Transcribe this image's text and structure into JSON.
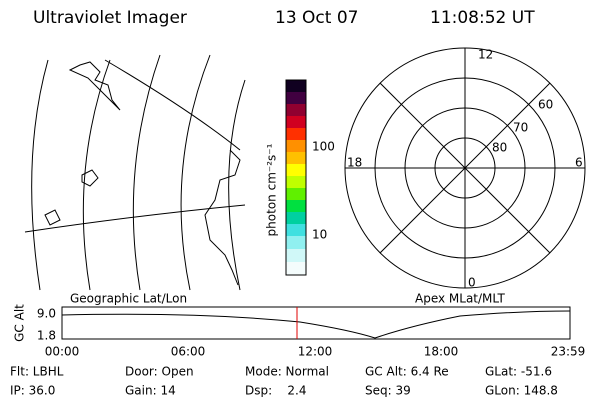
{
  "header": {
    "title": "Ultraviolet Imager",
    "date": "13 Oct 07",
    "time": "11:08:52 UT"
  },
  "map": {
    "caption": "Geographic Lat/Lon"
  },
  "colorbar": {
    "label": "photon cm⁻²s⁻¹",
    "ticks": [
      "100",
      "10"
    ]
  },
  "polar": {
    "caption": "Apex MLat/MLT",
    "mlt_labels": [
      "12",
      "18",
      "6",
      "0"
    ],
    "mlat_labels": [
      "60",
      "70",
      "80"
    ]
  },
  "orbit": {
    "ylabel": "GC Alt",
    "yticks": [
      "9.0",
      "1.8"
    ],
    "xticks": [
      "00:00",
      "06:00",
      "12:00",
      "18:00",
      "23:59"
    ]
  },
  "status": {
    "rows": [
      [
        "Flt: LBHL",
        "Door: Open",
        "Mode: Normal",
        "GC Alt: 6.4 Re",
        "GLat: -51.6"
      ],
      [
        "IP: 36.0",
        "Gain: 14",
        "Dsp:    2.4",
        "Seq: 39",
        "GLon: 148.8"
      ]
    ]
  }
}
